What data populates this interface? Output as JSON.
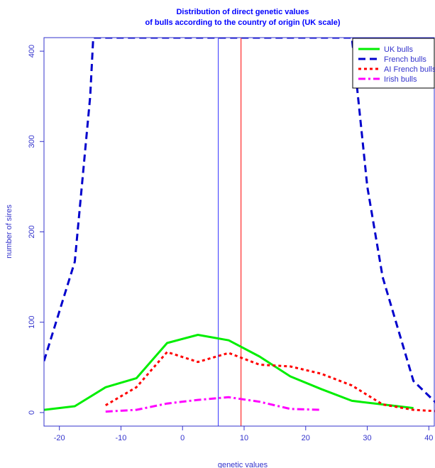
{
  "chart_data": {
    "type": "line",
    "title_line1": "Distribution of direct genetic values",
    "title_line2": "of bulls according to the country of origin (UK scale)",
    "xlabel": "genetic values",
    "ylabel": "number of sires",
    "xlim": [
      -22.5,
      41
    ],
    "ylim": [
      -15,
      415
    ],
    "xticks": [
      -20,
      -10,
      0,
      10,
      20,
      30,
      40
    ],
    "yticks": [
      0,
      100,
      200,
      300,
      400
    ],
    "grid": false,
    "legend_position": "top-right",
    "colors": {
      "text": "#3333cc",
      "axis": "#3333cc",
      "title": "#0000ff"
    },
    "series": [
      {
        "name": "UK bulls",
        "color": "#00ee00",
        "style": "solid",
        "x": [
          -22.5,
          -17.5,
          -12.5,
          -7.5,
          -2.5,
          2.5,
          7.5,
          12.5,
          17.5,
          22.5,
          27.5,
          32.5,
          37.5
        ],
        "y": [
          3,
          7,
          28,
          38,
          77,
          86,
          80,
          62,
          40,
          26,
          13,
          9,
          5
        ]
      },
      {
        "name": "French bulls",
        "color": "#0000cc",
        "style": "dashed",
        "x": [
          -22.5,
          -17.5,
          -15,
          -14.5,
          27.5,
          30,
          32.5,
          37.5,
          42.5
        ],
        "y": [
          57,
          167,
          350,
          415,
          415,
          250,
          150,
          35,
          2
        ]
      },
      {
        "name": "AI French bulls",
        "color": "#ff0000",
        "style": "dotted",
        "x": [
          -12.5,
          -7.5,
          -2.5,
          2.5,
          7.5,
          12.5,
          17.5,
          22.5,
          27.5,
          32.5,
          37.5,
          42.5
        ],
        "y": [
          8,
          28,
          67,
          56,
          66,
          53,
          51,
          43,
          30,
          9,
          3,
          1
        ]
      },
      {
        "name": "Irish bulls",
        "color": "#ff00ff",
        "style": "dashdot",
        "x": [
          -12.5,
          -7.5,
          -2.5,
          2.5,
          7.5,
          12.5,
          17.5,
          22.5
        ],
        "y": [
          1,
          3,
          10,
          14,
          17,
          12,
          4,
          3
        ]
      }
    ],
    "vlines": [
      {
        "x": 5.8,
        "color": "#3333ff"
      },
      {
        "x": 9.5,
        "color": "#ff0000"
      }
    ]
  }
}
